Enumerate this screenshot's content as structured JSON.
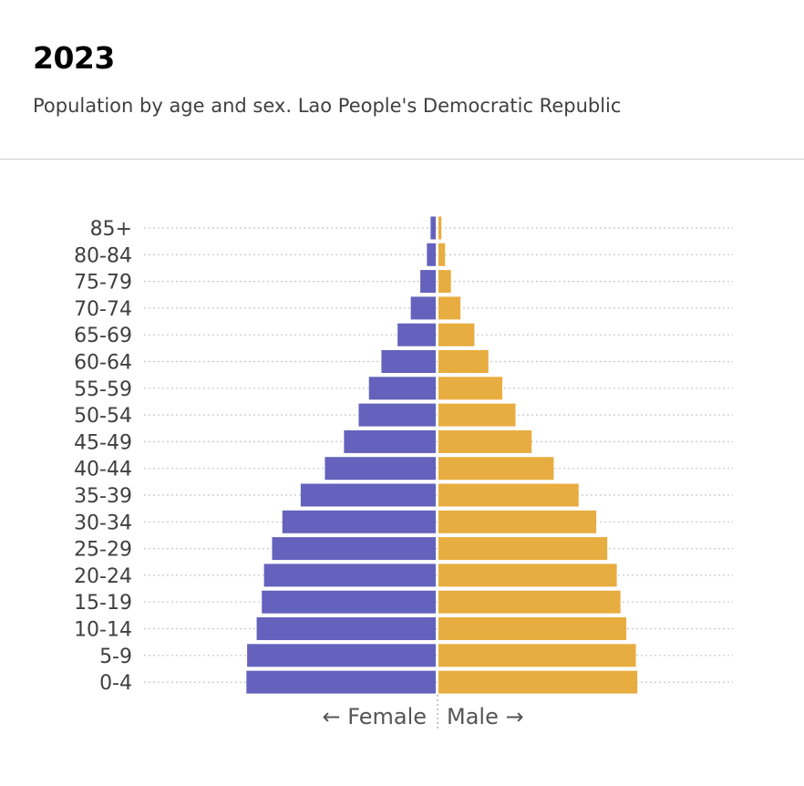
{
  "header": {
    "title": "2023",
    "subtitle": "Population by age and sex. Lao People's Democratic Republic"
  },
  "colors": {
    "female": "#6462bc",
    "male": "#e8ad40",
    "grid": "#c8c8c8",
    "text": "#404040"
  },
  "chart_data": {
    "type": "bar",
    "orientation": "horizontal",
    "layout": "population-pyramid",
    "categories": [
      "85+",
      "80-84",
      "75-79",
      "70-74",
      "65-69",
      "60-64",
      "55-59",
      "50-54",
      "45-49",
      "40-44",
      "35-39",
      "30-34",
      "25-29",
      "20-24",
      "15-19",
      "10-14",
      "5-9",
      "0-4"
    ],
    "series": [
      {
        "name": "Female",
        "values": [
          0.07,
          0.12,
          0.21,
          0.34,
          0.52,
          0.74,
          0.91,
          1.05,
          1.25,
          1.51,
          1.84,
          2.09,
          2.23,
          2.34,
          2.37,
          2.44,
          2.57,
          2.58
        ]
      },
      {
        "name": "Male",
        "values": [
          0.04,
          0.09,
          0.17,
          0.3,
          0.49,
          0.68,
          0.87,
          1.05,
          1.27,
          1.57,
          1.91,
          2.15,
          2.3,
          2.43,
          2.48,
          2.56,
          2.69,
          2.71
        ]
      }
    ],
    "xlabel_left": "← Female",
    "xlabel_right": "Male →",
    "grid": "dotted-horizontal",
    "legend": "none"
  }
}
